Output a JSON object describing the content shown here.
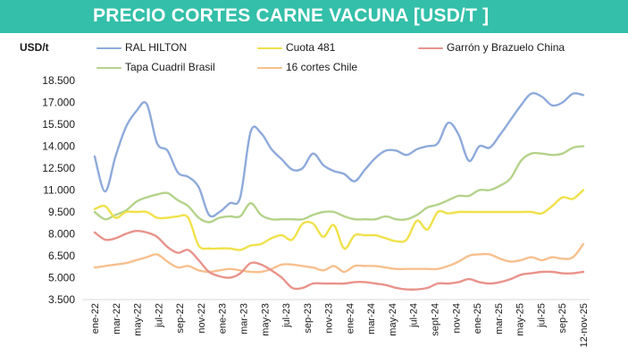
{
  "header": {
    "title": "PRECIO CORTES CARNE VACUNA [USD/T ]"
  },
  "chart_data": {
    "type": "line",
    "title": "PRECIO CORTES CARNE VACUNA [USD/T ]",
    "ylabel": "USD/t",
    "xlabel": "",
    "ylim": [
      3500,
      18500
    ],
    "yticks": [
      3500,
      5000,
      6500,
      8000,
      9500,
      11000,
      12500,
      14000,
      15500,
      17000,
      18500
    ],
    "ytick_labels": [
      "3.500",
      "5.000",
      "6.500",
      "8.000",
      "9.500",
      "11.000",
      "12.500",
      "14.000",
      "15.500",
      "17.000",
      "18.500"
    ],
    "x_tick_labels": [
      "ene-22",
      "mar-22",
      "may-22",
      "jul-22",
      "sep-22",
      "nov-22",
      "ene-23",
      "mar-23",
      "may-23",
      "jul-23",
      "sep-23",
      "nov-23",
      "ene-24",
      "mar-24",
      "may-24",
      "jul-24",
      "sept-24",
      "nov-24",
      "ene-25",
      "mar-25",
      "may-25",
      "jul-25",
      "sep-25",
      "12-nov-25"
    ],
    "grid": false,
    "legend_position": "top",
    "series": [
      {
        "name": "RAL HILTON",
        "color": "#8eaadb",
        "values": [
          13300,
          10900,
          13300,
          15300,
          16400,
          16900,
          14200,
          13700,
          12200,
          11900,
          11200,
          9300,
          9500,
          10100,
          10500,
          15000,
          14900,
          13800,
          13100,
          12400,
          12500,
          13500,
          12700,
          12300,
          12100,
          11600,
          12400,
          13200,
          13700,
          13700,
          13400,
          13800,
          14000,
          14200,
          15600,
          14800,
          13000,
          14000,
          13900,
          14800,
          15800,
          16800,
          17600,
          17400,
          16800,
          17000,
          17600,
          17500
        ]
      },
      {
        "name": "Cuota 481",
        "color": "#f0e14a",
        "values": [
          9700,
          9900,
          9100,
          9500,
          9500,
          9500,
          9100,
          9100,
          9200,
          9100,
          7200,
          7000,
          7000,
          7000,
          6900,
          7200,
          7300,
          7700,
          7900,
          7600,
          8700,
          8700,
          7800,
          8600,
          7000,
          7900,
          7900,
          7900,
          7700,
          7500,
          7600,
          8900,
          8300,
          9500,
          9400,
          9500,
          9500,
          9500,
          9500,
          9500,
          9500,
          9500,
          9500,
          9400,
          9900,
          10500,
          10400,
          11000
        ]
      },
      {
        "name": "Garrón y Brazuelo China",
        "color": "#e8938b",
        "values": [
          8100,
          7600,
          7700,
          8000,
          8200,
          8100,
          7800,
          7100,
          6700,
          6900,
          6200,
          5400,
          5100,
          5000,
          5300,
          6000,
          5900,
          5500,
          5000,
          4300,
          4300,
          4600,
          4600,
          4600,
          4600,
          4700,
          4700,
          4600,
          4500,
          4300,
          4200,
          4200,
          4300,
          4600,
          4600,
          4700,
          4900,
          4700,
          4600,
          4700,
          4900,
          5200,
          5300,
          5400,
          5400,
          5300,
          5300,
          5400
        ]
      },
      {
        "name": "Tapa Cuadril Brasil",
        "color": "#b4d38a",
        "values": [
          9500,
          9000,
          9300,
          9600,
          10200,
          10500,
          10700,
          10800,
          10300,
          9900,
          9100,
          8800,
          9100,
          9200,
          9200,
          10100,
          9300,
          9000,
          9000,
          9000,
          9000,
          9300,
          9500,
          9500,
          9200,
          9000,
          9000,
          9000,
          9200,
          9000,
          9000,
          9300,
          9800,
          10000,
          10300,
          10600,
          10600,
          11000,
          11000,
          11300,
          11800,
          13000,
          13500,
          13500,
          13400,
          13500,
          13900,
          14000
        ]
      },
      {
        "name": "16 cortes Chile",
        "color": "#f7c08e",
        "values": [
          5700,
          5800,
          5900,
          6000,
          6200,
          6400,
          6600,
          6100,
          5700,
          5800,
          5500,
          5400,
          5500,
          5600,
          5500,
          5400,
          5400,
          5600,
          5900,
          5900,
          5800,
          5700,
          5500,
          5800,
          5400,
          5800,
          5800,
          5800,
          5700,
          5600,
          5600,
          5600,
          5600,
          5600,
          5800,
          6100,
          6500,
          6600,
          6600,
          6300,
          6100,
          6200,
          6400,
          6200,
          6400,
          6300,
          6400,
          7300
        ]
      }
    ]
  }
}
